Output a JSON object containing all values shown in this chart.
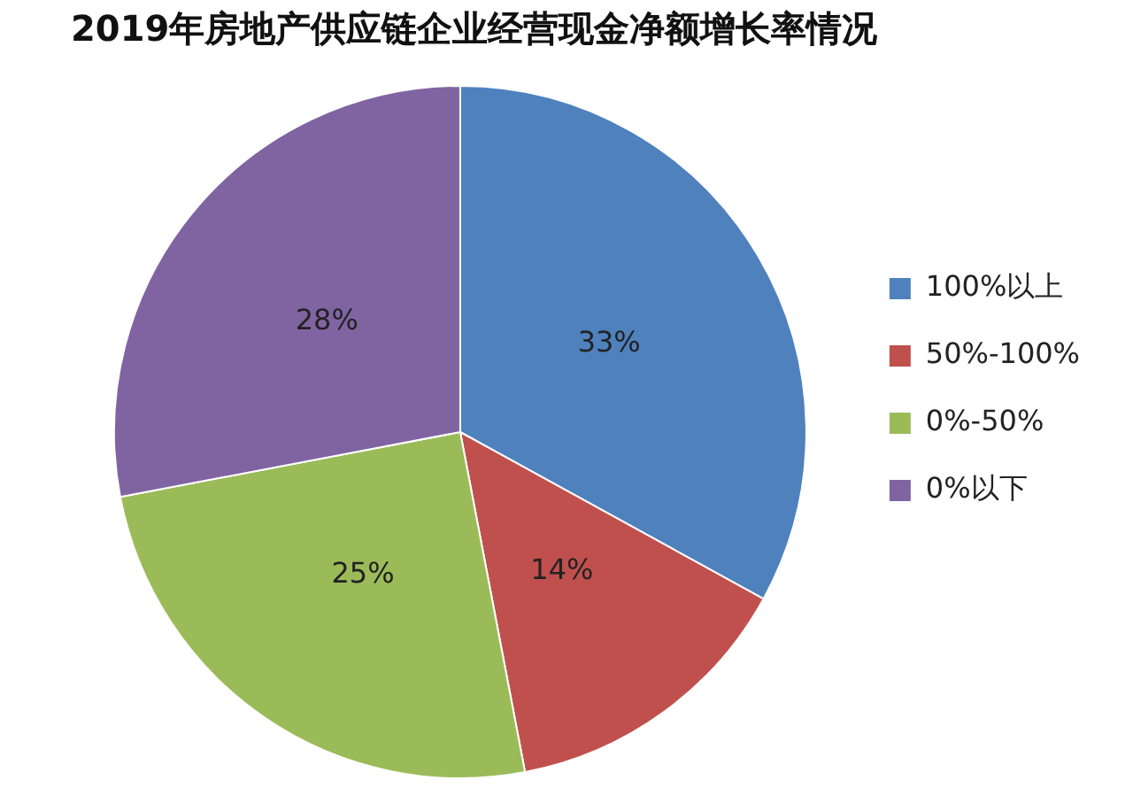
{
  "chart_data": {
    "type": "pie",
    "title": "2019年房地产供应链企业经营现金净额增长率情况",
    "categories": [
      "100%以上",
      "50%-100%",
      "0%-50%",
      "0%以下"
    ],
    "values": [
      33,
      14,
      25,
      28
    ],
    "colors": [
      "#4f81bd",
      "#c0504d",
      "#9bbb59",
      "#8064a2"
    ],
    "value_labels": [
      "33%",
      "14%",
      "25%",
      "28%"
    ],
    "legend": "right"
  }
}
